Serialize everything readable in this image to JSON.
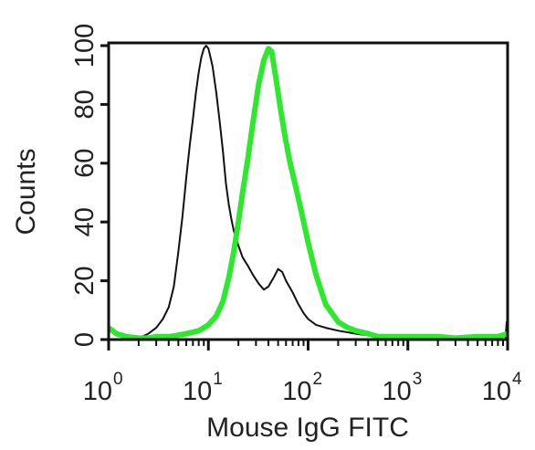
{
  "chart_data": {
    "type": "line",
    "title": "",
    "xlabel": "Mouse IgG FITC",
    "ylabel": "Counts",
    "x_scale": "log",
    "xlim": [
      1,
      10000
    ],
    "ylim": [
      0,
      100
    ],
    "grid": false,
    "legend": "none",
    "x_ticks": [
      {
        "base": "10",
        "exp": "0",
        "value": 1
      },
      {
        "base": "10",
        "exp": "1",
        "value": 10
      },
      {
        "base": "10",
        "exp": "2",
        "value": 100
      },
      {
        "base": "10",
        "exp": "3",
        "value": 1000
      },
      {
        "base": "10",
        "exp": "4",
        "value": 10000
      }
    ],
    "y_ticks": [
      "0",
      "20",
      "40",
      "60",
      "80",
      "100"
    ],
    "series": [
      {
        "color": "#111111",
        "x": [
          1.0,
          1.5,
          2.0,
          2.5,
          3.0,
          3.5,
          4.0,
          4.5,
          5.0,
          5.5,
          6.0,
          6.5,
          7.0,
          7.5,
          8.0,
          8.5,
          9.0,
          9.5,
          10.0,
          11.0,
          12.0,
          13.0,
          14.0,
          15.0,
          16.0,
          17.0,
          18.0,
          20.0,
          22.0,
          25.0,
          28.0,
          32.0,
          36.0,
          40.0,
          45.0,
          50.0,
          55.0,
          60.0,
          70.0,
          80.0,
          90.0,
          100,
          120,
          150,
          200,
          300,
          500,
          1000,
          3000,
          9500,
          9800,
          10000
        ],
        "y": [
          0,
          0,
          0.5,
          2,
          4,
          7,
          11,
          18,
          30,
          42,
          55,
          66,
          75,
          84,
          91,
          96,
          99,
          100,
          99,
          93,
          84,
          74,
          64,
          53,
          46,
          41,
          37,
          32,
          28,
          25,
          22,
          19,
          17,
          18,
          21,
          24,
          23,
          20,
          16,
          12,
          9,
          7,
          5,
          4,
          3,
          2,
          1,
          0.5,
          0,
          0,
          6,
          0
        ]
      },
      {
        "color": "#2ee82e",
        "x": [
          1.0,
          1.2,
          1.5,
          2.0,
          2.5,
          3.0,
          4.0,
          5.0,
          6.0,
          7.0,
          8.0,
          9.0,
          10.0,
          12.0,
          14.0,
          16.0,
          18.0,
          20.0,
          22.0,
          25.0,
          28.0,
          32.0,
          36.0,
          40.0,
          43.0,
          47.0,
          52.0,
          58.0,
          65.0,
          75.0,
          85.0,
          100,
          120,
          150,
          200,
          250,
          300,
          400,
          500,
          700,
          1000,
          2000,
          3000,
          5000,
          8000,
          10000
        ],
        "y": [
          4,
          2,
          1,
          0.5,
          0.5,
          1,
          1,
          1.5,
          2,
          2.5,
          3,
          4,
          5,
          8,
          13,
          21,
          30,
          40,
          50,
          62,
          74,
          87,
          95,
          99,
          98,
          90,
          80,
          70,
          61,
          52,
          44,
          33,
          22,
          12,
          6,
          4,
          3,
          2,
          1,
          1,
          1,
          1,
          0.5,
          1,
          1,
          2
        ]
      }
    ]
  }
}
